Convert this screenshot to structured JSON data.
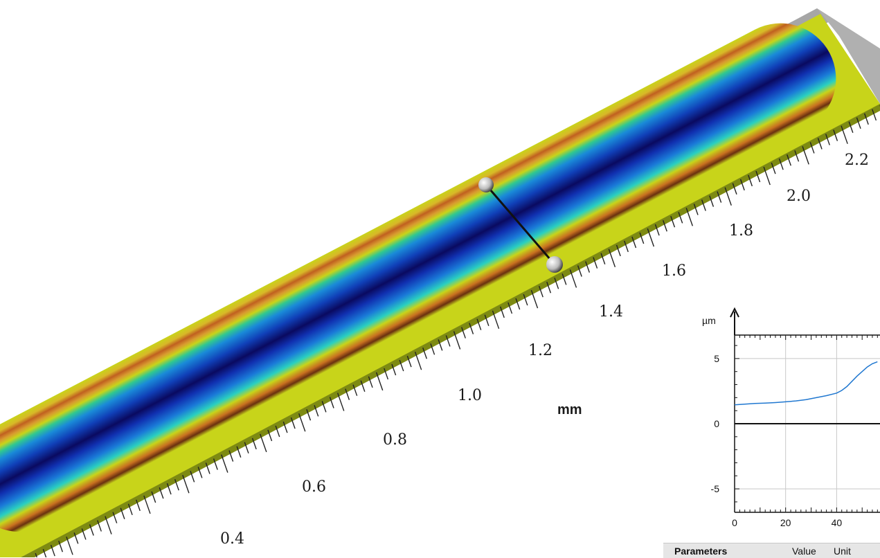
{
  "surface": {
    "axis_unit": "mm",
    "axis_labels": [
      "0.4",
      "0.6",
      "0.8",
      "1.0",
      "1.2",
      "1.4",
      "1.6",
      "1.8",
      "2.0",
      "2.2"
    ],
    "colors": {
      "flat": "#c8d41a",
      "rim": "#b8501a",
      "deep": "#0a0a60",
      "mid": "#1a7ad8",
      "shallow": "#2ad0c0",
      "wall": "#9a9a9a"
    }
  },
  "chart_data": {
    "type": "line",
    "ylabel": "µm",
    "xlabel": "",
    "x_ticks": [
      "0",
      "20",
      "40"
    ],
    "y_ticks": [
      "5",
      "0",
      "-5"
    ],
    "xlim": [
      0,
      57
    ],
    "ylim": [
      -6.8,
      6.8
    ],
    "series": [
      {
        "color": "#1f77d0",
        "x": [
          0,
          4,
          8,
          12,
          16,
          20,
          24,
          28,
          32,
          36,
          40,
          42,
          44,
          46,
          48,
          50,
          52,
          54,
          56
        ],
        "y": [
          1.45,
          1.5,
          1.55,
          1.58,
          1.62,
          1.68,
          1.75,
          1.85,
          2.0,
          2.15,
          2.35,
          2.55,
          2.85,
          3.25,
          3.65,
          4.0,
          4.35,
          4.6,
          4.75
        ]
      }
    ]
  },
  "param_table": {
    "headers": [
      "Parameters",
      "Value",
      "Unit"
    ]
  }
}
